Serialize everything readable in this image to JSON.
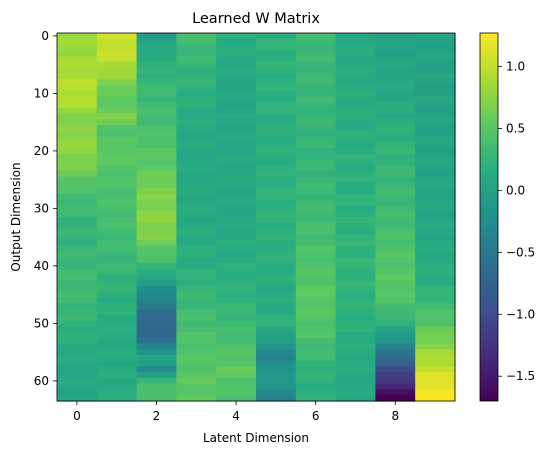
{
  "chart_data": {
    "type": "heatmap",
    "title": "Learned W Matrix",
    "xlabel": "Latent Dimension",
    "ylabel": "Output Dimension",
    "n_rows": 64,
    "n_cols": 10,
    "xticks": [
      0,
      2,
      4,
      6,
      8
    ],
    "yticks": [
      0,
      10,
      20,
      30,
      40,
      50,
      60
    ],
    "colorbar": {
      "colormap": "viridis",
      "vmin": -1.7,
      "vmax": 1.27,
      "ticks": [
        1.0,
        0.5,
        0.0,
        -0.5,
        -1.0,
        -1.5
      ],
      "tick_labels": [
        "1.0",
        "0.5",
        "0.0",
        "−0.5",
        "−1.0",
        "−1.5"
      ]
    },
    "column_profiles": [
      [
        [
          0,
          0.82
        ],
        [
          4,
          0.85
        ],
        [
          8,
          0.95
        ],
        [
          11,
          0.95
        ],
        [
          15,
          0.68
        ],
        [
          18,
          0.8
        ],
        [
          22,
          0.7
        ],
        [
          28,
          0.35
        ],
        [
          33,
          0.25
        ],
        [
          38,
          0.28
        ],
        [
          43,
          0.35
        ],
        [
          48,
          0.28
        ],
        [
          54,
          0.15
        ],
        [
          60,
          0.08
        ],
        [
          63,
          0.05
        ]
      ],
      [
        [
          0,
          1.05
        ],
        [
          4,
          1.0
        ],
        [
          7,
          0.78
        ],
        [
          11,
          0.5
        ],
        [
          14,
          0.68
        ],
        [
          17,
          0.42
        ],
        [
          20,
          0.55
        ],
        [
          25,
          0.42
        ],
        [
          32,
          0.38
        ],
        [
          40,
          0.28
        ],
        [
          46,
          0.2
        ],
        [
          55,
          0.12
        ],
        [
          60,
          0.15
        ],
        [
          63,
          0.15
        ]
      ],
      [
        [
          0,
          0.0
        ],
        [
          4,
          0.18
        ],
        [
          9,
          0.3
        ],
        [
          15,
          0.38
        ],
        [
          22,
          0.52
        ],
        [
          27,
          0.68
        ],
        [
          32,
          0.75
        ],
        [
          35,
          0.68
        ],
        [
          38,
          0.45
        ],
        [
          41,
          0.2
        ],
        [
          44,
          -0.2
        ],
        [
          47,
          -0.5
        ],
        [
          50,
          -0.72
        ],
        [
          53,
          -0.6
        ],
        [
          56,
          0.1
        ],
        [
          58,
          -0.28
        ],
        [
          60,
          0.3
        ],
        [
          63,
          0.45
        ]
      ],
      [
        [
          0,
          0.35
        ],
        [
          10,
          0.2
        ],
        [
          20,
          0.1
        ],
        [
          30,
          0.12
        ],
        [
          40,
          0.18
        ],
        [
          45,
          0.28
        ],
        [
          50,
          0.38
        ],
        [
          55,
          0.45
        ],
        [
          60,
          0.52
        ],
        [
          63,
          0.52
        ]
      ],
      [
        [
          0,
          0.18
        ],
        [
          10,
          0.05
        ],
        [
          20,
          0.1
        ],
        [
          30,
          0.08
        ],
        [
          38,
          0.15
        ],
        [
          45,
          0.22
        ],
        [
          50,
          0.32
        ],
        [
          55,
          0.45
        ],
        [
          58,
          0.55
        ],
        [
          63,
          0.38
        ]
      ],
      [
        [
          0,
          0.22
        ],
        [
          10,
          0.2
        ],
        [
          20,
          0.18
        ],
        [
          30,
          0.22
        ],
        [
          40,
          0.18
        ],
        [
          46,
          0.15
        ],
        [
          50,
          0.2
        ],
        [
          53,
          -0.05
        ],
        [
          56,
          -0.35
        ],
        [
          59,
          -0.05
        ],
        [
          62,
          -0.28
        ],
        [
          63,
          -0.35
        ]
      ],
      [
        [
          0,
          0.32
        ],
        [
          10,
          0.28
        ],
        [
          20,
          0.25
        ],
        [
          30,
          0.32
        ],
        [
          40,
          0.45
        ],
        [
          46,
          0.52
        ],
        [
          52,
          0.42
        ],
        [
          56,
          0.3
        ],
        [
          60,
          0.2
        ],
        [
          63,
          0.2
        ]
      ],
      [
        [
          0,
          0.1
        ],
        [
          10,
          0.15
        ],
        [
          20,
          0.18
        ],
        [
          30,
          0.2
        ],
        [
          40,
          0.25
        ],
        [
          50,
          0.2
        ],
        [
          56,
          0.15
        ],
        [
          60,
          0.1
        ],
        [
          63,
          0.1
        ]
      ],
      [
        [
          0,
          0.0
        ],
        [
          10,
          0.1
        ],
        [
          20,
          0.25
        ],
        [
          30,
          0.32
        ],
        [
          38,
          0.45
        ],
        [
          44,
          0.52
        ],
        [
          48,
          0.35
        ],
        [
          51,
          0.1
        ],
        [
          54,
          -0.35
        ],
        [
          57,
          -0.85
        ],
        [
          60,
          -1.25
        ],
        [
          62,
          -1.55
        ],
        [
          63,
          -1.7
        ]
      ],
      [
        [
          0,
          0.02
        ],
        [
          10,
          0.02
        ],
        [
          20,
          0.03
        ],
        [
          30,
          0.05
        ],
        [
          38,
          0.12
        ],
        [
          44,
          0.2
        ],
        [
          48,
          0.4
        ],
        [
          52,
          0.6
        ],
        [
          56,
          0.9
        ],
        [
          60,
          1.15
        ],
        [
          63,
          1.27
        ]
      ]
    ]
  }
}
